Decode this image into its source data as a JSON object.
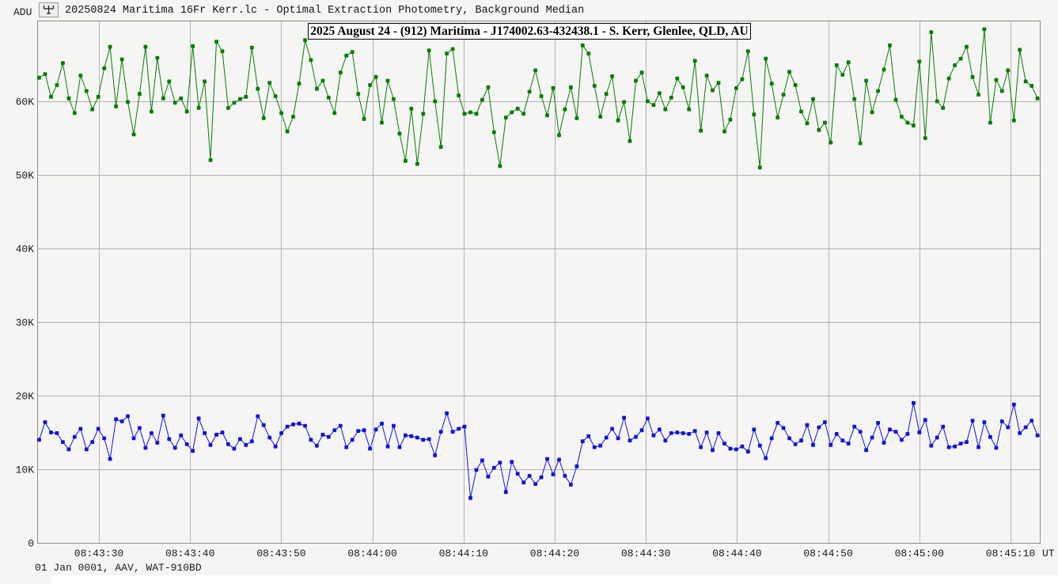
{
  "header": {
    "y_axis_unit": "ADU",
    "title": "20250824 Maritima 16Fr Kerr.lc - Optimal Extraction Photometry, Background Median"
  },
  "annotation": {
    "text": "2025 August 24 - (912) Maritima - J174002.63-432438.1 - S. Kerr, Glenlee, QLD, AU"
  },
  "footer": {
    "info": "01 Jan 0001, AAV, WAT-910BD"
  },
  "colors": {
    "background": "#f5f5f3",
    "plot_border": "#8c8c8c",
    "gridline": "#b2b2b2",
    "green_series": "#077d07",
    "blue_series": "#1212dd",
    "text": "#1a1a1a"
  },
  "chart_data": {
    "type": "line",
    "title": "20250824 Maritima 16Fr Kerr.lc - Optimal Extraction Photometry, Background Median",
    "xlabel": "UT",
    "ylabel": "ADU",
    "x_axis_suffix": "UT",
    "grid": true,
    "legend": "none",
    "y_tick_labels": [
      "0",
      "10K",
      "20K",
      "30K",
      "40K",
      "50K",
      "60K"
    ],
    "y_tick_values": [
      0,
      10000,
      20000,
      30000,
      40000,
      50000,
      60000
    ],
    "ylim": [
      0,
      71000
    ],
    "x_tick_labels": [
      "08:43:30",
      "08:43:40",
      "08:43:50",
      "08:44:00",
      "08:44:10",
      "08:44:20",
      "08:44:30",
      "08:44:40",
      "08:44:50",
      "08:45:00",
      "08:45:10"
    ],
    "x_tick_seconds": [
      10,
      20,
      30,
      40,
      50,
      60,
      70,
      80,
      90,
      100,
      110
    ],
    "time_reference": "seconds after 08:43:20 UT",
    "start_time_s": 3.45,
    "sample_interval_s": 0.648,
    "series": [
      {
        "name": "green-lightcurve",
        "color": "#077d07",
        "values": [
          63200,
          63700,
          60600,
          62200,
          65200,
          60400,
          58400,
          63500,
          61400,
          58900,
          60600,
          64500,
          67400,
          59300,
          65700,
          59900,
          55500,
          61000,
          67400,
          58600,
          65900,
          60400,
          62700,
          59800,
          60400,
          58600,
          67500,
          59100,
          62700,
          52000,
          68100,
          66800,
          59100,
          59800,
          60300,
          60600,
          67300,
          61700,
          57700,
          62500,
          60700,
          58400,
          55900,
          57900,
          62400,
          68300,
          65600,
          61700,
          62800,
          60500,
          58400,
          63900,
          66200,
          66700,
          61000,
          57600,
          62200,
          63300,
          57100,
          62800,
          60300,
          55600,
          51900,
          59000,
          51500,
          58300,
          66900,
          60000,
          53800,
          66500,
          67100,
          60800,
          58300,
          58500,
          58300,
          60200,
          61900,
          55800,
          51200,
          57800,
          58500,
          59000,
          58300,
          61300,
          64200,
          60700,
          58100,
          61800,
          55400,
          58900,
          61900,
          57700,
          67600,
          66500,
          62100,
          57900,
          61000,
          63400,
          57400,
          59900,
          54600,
          62800,
          63900,
          60000,
          59500,
          61100,
          58900,
          60500,
          63100,
          61900,
          58900,
          65500,
          56000,
          63500,
          61500,
          62500,
          55900,
          57500,
          61800,
          63000,
          66800,
          58200,
          51000,
          65800,
          62400,
          57800,
          60900,
          64000,
          62200,
          58600,
          57000,
          60300,
          56100,
          57100,
          54400,
          64900,
          63600,
          65300,
          60300,
          54300,
          62800,
          58500,
          61400,
          64300,
          67600,
          60200,
          57900,
          57100,
          56700,
          65400,
          55000,
          69400,
          60000,
          59100,
          63100,
          64900,
          65800,
          67400,
          63300,
          60900,
          69800,
          57100,
          62900,
          61400,
          64200,
          57400,
          67000,
          62700,
          62100,
          60400
        ]
      },
      {
        "name": "blue-lightcurve",
        "color": "#1212dd",
        "values": [
          14000,
          16400,
          15000,
          14900,
          13700,
          12700,
          14400,
          15500,
          12700,
          13700,
          15500,
          14200,
          11400,
          16800,
          16500,
          17200,
          14200,
          15600,
          12900,
          14900,
          13600,
          17300,
          14100,
          12900,
          14600,
          13400,
          12500,
          16900,
          14900,
          13300,
          14700,
          15000,
          13400,
          12800,
          14100,
          13300,
          13800,
          17200,
          16000,
          14300,
          13100,
          14900,
          15800,
          16100,
          16200,
          15900,
          14000,
          13200,
          14700,
          14400,
          15300,
          15900,
          13000,
          14000,
          15200,
          15300,
          12800,
          15400,
          16200,
          13100,
          15900,
          13000,
          14600,
          14500,
          14300,
          14000,
          14100,
          11900,
          15100,
          17600,
          15100,
          15500,
          15800,
          6100,
          9900,
          11200,
          9000,
          10200,
          10900,
          6900,
          11000,
          9400,
          8200,
          9100,
          8000,
          8900,
          11400,
          9300,
          11300,
          9100,
          7900,
          10400,
          13800,
          14500,
          13000,
          13200,
          14300,
          15500,
          14200,
          17000,
          13900,
          14400,
          15300,
          16900,
          14600,
          15400,
          13900,
          14900,
          15000,
          14900,
          14800,
          15200,
          13000,
          15000,
          12600,
          14900,
          13500,
          12800,
          12700,
          13100,
          12400,
          15400,
          13200,
          11500,
          14200,
          16300,
          15600,
          14200,
          13400,
          13900,
          16000,
          13300,
          15700,
          16400,
          13300,
          14800,
          13900,
          13500,
          15800,
          15100,
          12600,
          14300,
          16300,
          13600,
          15400,
          15100,
          14000,
          14800,
          19000,
          15000,
          16700,
          13200,
          14300,
          15800,
          13000,
          13100,
          13500,
          13700,
          16600,
          13000,
          16400,
          14400,
          12900,
          16500,
          15700,
          18800,
          14900,
          15700,
          16600,
          14600
        ]
      }
    ]
  }
}
